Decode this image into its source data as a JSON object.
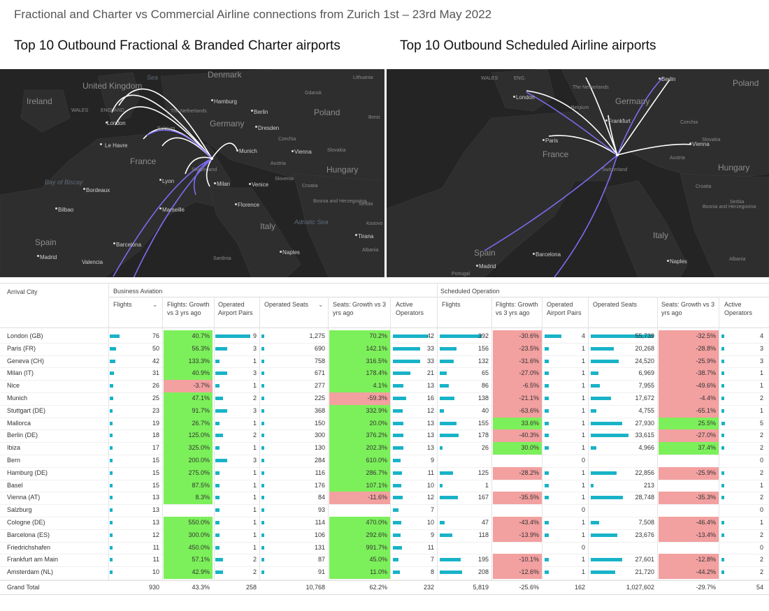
{
  "title": "Fractional and Charter vs Commercial Airline connections from Zurich 1st – 23rd May 2022",
  "maps": {
    "left_title": "Top 10 Outbound Fractional & Branded Charter airports",
    "right_title": "Top 10 Outbound Scheduled Airline airports",
    "left_labels": [
      "United Kingdom",
      "Ireland",
      "WALES",
      "ENGLAND",
      "London",
      "Le Havre",
      "France",
      "Bordeaux",
      "Bay of Biscay",
      "Bilbao",
      "Spain",
      "Madrid",
      "Valencia",
      "Barcelona",
      "Marseille",
      "Lyon",
      "Belgium",
      "The Netherlands",
      "Denmark",
      "Hamburg",
      "Berlin",
      "Gdansk",
      "Lithuania",
      "Poland",
      "Germany",
      "Dresden",
      "Brest",
      "Czechia",
      "Munich",
      "Vienna",
      "Slovakia",
      "Austria",
      "Hungary",
      "Switzerland",
      "Milan",
      "Venice",
      "Slovenia",
      "Croatia",
      "Bosnia and Herzegovina",
      "Serbia",
      "Florence",
      "Italy",
      "Adriatic Sea",
      "Kosovo",
      "Tirana",
      "Albania",
      "Naples",
      "Sardinia",
      "Sea"
    ],
    "right_labels": [
      "WALES",
      "ENG.",
      "London",
      "The Netherlands",
      "Belgium",
      "Germany",
      "Berlin",
      "Poland",
      "Frankfurt",
      "Paris",
      "France",
      "Czechia",
      "Slovakia",
      "Vienna",
      "Austria",
      "Hungary",
      "Switzerland",
      "Croatia",
      "Bosnia and Herzegovina",
      "Serbia",
      "Italy",
      "Spain",
      "Madrid",
      "Barcelona",
      "Naples",
      "Albania",
      "Portugal"
    ]
  },
  "chart_data": {
    "type": "table",
    "group_headers": [
      "Business Aviation",
      "Scheduled Operation"
    ],
    "columns": [
      "Arrival City",
      "Flights",
      "Flights: Growth vs 3 yrs ago",
      "Operated Airport Pairs",
      "Operated Seats",
      "Seats: Growth vs 3 yrs ago",
      "Active Operators",
      "Flights",
      "Flights: Growth vs 3 yrs ago",
      "Operated Airport Pairs",
      "Operated Seats",
      "Seats: Growth vs 3 yrs ago",
      "Active Operators"
    ],
    "rows": [
      {
        "city": "London (GB)",
        "ba_flights": 76,
        "ba_flights_growth": "40.7%",
        "ba_pairs": 9,
        "ba_seats": "1,275",
        "ba_seats_growth": "70.2%",
        "ba_ops": 42,
        "so_flights": 392,
        "so_flights_growth": "-30.6%",
        "so_pairs": 4,
        "so_seats": "55,739",
        "so_seats_growth": "-32.5%",
        "so_ops": 4
      },
      {
        "city": "Paris (FR)",
        "ba_flights": 50,
        "ba_flights_growth": "56.3%",
        "ba_pairs": 3,
        "ba_seats": "690",
        "ba_seats_growth": "142.1%",
        "ba_ops": 33,
        "so_flights": 156,
        "so_flights_growth": "-23.5%",
        "so_pairs": 1,
        "so_seats": "20,268",
        "so_seats_growth": "-28.8%",
        "so_ops": 3
      },
      {
        "city": "Geneva (CH)",
        "ba_flights": 42,
        "ba_flights_growth": "133.3%",
        "ba_pairs": 1,
        "ba_seats": "758",
        "ba_seats_growth": "316.5%",
        "ba_ops": 33,
        "so_flights": 132,
        "so_flights_growth": "-31.6%",
        "so_pairs": 1,
        "so_seats": "24,520",
        "so_seats_growth": "-25.9%",
        "so_ops": 3
      },
      {
        "city": "Milan (IT)",
        "ba_flights": 31,
        "ba_flights_growth": "40.9%",
        "ba_pairs": 3,
        "ba_seats": "671",
        "ba_seats_growth": "178.4%",
        "ba_ops": 21,
        "so_flights": 65,
        "so_flights_growth": "-27.0%",
        "so_pairs": 1,
        "so_seats": "6,969",
        "so_seats_growth": "-38.7%",
        "so_ops": 1
      },
      {
        "city": "Nice",
        "ba_flights": 26,
        "ba_flights_growth": "-3.7%",
        "ba_pairs": 1,
        "ba_seats": "277",
        "ba_seats_growth": "4.1%",
        "ba_ops": 13,
        "so_flights": 86,
        "so_flights_growth": "-6.5%",
        "so_pairs": 1,
        "so_seats": "7,955",
        "so_seats_growth": "-49.6%",
        "so_ops": 1
      },
      {
        "city": "Munich",
        "ba_flights": 25,
        "ba_flights_growth": "47.1%",
        "ba_pairs": 2,
        "ba_seats": "225",
        "ba_seats_growth": "-59.3%",
        "ba_ops": 16,
        "so_flights": 138,
        "so_flights_growth": "-21.1%",
        "so_pairs": 1,
        "so_seats": "17,672",
        "so_seats_growth": "-4.4%",
        "so_ops": 2
      },
      {
        "city": "Stuttgart (DE)",
        "ba_flights": 23,
        "ba_flights_growth": "91.7%",
        "ba_pairs": 3,
        "ba_seats": "368",
        "ba_seats_growth": "332.9%",
        "ba_ops": 12,
        "so_flights": 40,
        "so_flights_growth": "-63.6%",
        "so_pairs": 1,
        "so_seats": "4,755",
        "so_seats_growth": "-65.1%",
        "so_ops": 1
      },
      {
        "city": "Mallorca",
        "ba_flights": 19,
        "ba_flights_growth": "26.7%",
        "ba_pairs": 1,
        "ba_seats": "150",
        "ba_seats_growth": "20.0%",
        "ba_ops": 13,
        "so_flights": 155,
        "so_flights_growth": "33.6%",
        "so_pairs": 1,
        "so_seats": "27,930",
        "so_seats_growth": "25.5%",
        "so_ops": 5
      },
      {
        "city": "Berlin (DE)",
        "ba_flights": 18,
        "ba_flights_growth": "125.0%",
        "ba_pairs": 2,
        "ba_seats": "300",
        "ba_seats_growth": "376.2%",
        "ba_ops": 13,
        "so_flights": 178,
        "so_flights_growth": "-40.3%",
        "so_pairs": 1,
        "so_seats": "33,615",
        "so_seats_growth": "-27.0%",
        "so_ops": 2
      },
      {
        "city": "Ibiza",
        "ba_flights": 17,
        "ba_flights_growth": "325.0%",
        "ba_pairs": 1,
        "ba_seats": "130",
        "ba_seats_growth": "202.3%",
        "ba_ops": 13,
        "so_flights": 26,
        "so_flights_growth": "30.0%",
        "so_pairs": 1,
        "so_seats": "4,966",
        "so_seats_growth": "37.4%",
        "so_ops": 2
      },
      {
        "city": "Bern",
        "ba_flights": 15,
        "ba_flights_growth": "200.0%",
        "ba_pairs": 3,
        "ba_seats": "284",
        "ba_seats_growth": "610.0%",
        "ba_ops": 9,
        "so_flights": null,
        "so_flights_growth": "",
        "so_pairs": 0,
        "so_seats": "",
        "so_seats_growth": "",
        "so_ops": 0
      },
      {
        "city": "Hamburg (DE)",
        "ba_flights": 15,
        "ba_flights_growth": "275.0%",
        "ba_pairs": 1,
        "ba_seats": "116",
        "ba_seats_growth": "286.7%",
        "ba_ops": 11,
        "so_flights": 125,
        "so_flights_growth": "-28.2%",
        "so_pairs": 1,
        "so_seats": "22,856",
        "so_seats_growth": "-25.9%",
        "so_ops": 2
      },
      {
        "city": "Basel",
        "ba_flights": 15,
        "ba_flights_growth": "87.5%",
        "ba_pairs": 1,
        "ba_seats": "176",
        "ba_seats_growth": "107.1%",
        "ba_ops": 10,
        "so_flights": 1,
        "so_flights_growth": "",
        "so_pairs": 1,
        "so_seats": "213",
        "so_seats_growth": "",
        "so_ops": 1
      },
      {
        "city": "Vienna (AT)",
        "ba_flights": 13,
        "ba_flights_growth": "8.3%",
        "ba_pairs": 1,
        "ba_seats": "84",
        "ba_seats_growth": "-11.6%",
        "ba_ops": 12,
        "so_flights": 167,
        "so_flights_growth": "-35.5%",
        "so_pairs": 1,
        "so_seats": "28,748",
        "so_seats_growth": "-35.3%",
        "so_ops": 2
      },
      {
        "city": "Salzburg",
        "ba_flights": 13,
        "ba_flights_growth": "",
        "ba_pairs": 1,
        "ba_seats": "93",
        "ba_seats_growth": "",
        "ba_ops": 7,
        "so_flights": null,
        "so_flights_growth": "",
        "so_pairs": 0,
        "so_seats": "",
        "so_seats_growth": "",
        "so_ops": 0
      },
      {
        "city": "Cologne (DE)",
        "ba_flights": 13,
        "ba_flights_growth": "550.0%",
        "ba_pairs": 1,
        "ba_seats": "114",
        "ba_seats_growth": "470.0%",
        "ba_ops": 10,
        "so_flights": 47,
        "so_flights_growth": "-43.4%",
        "so_pairs": 1,
        "so_seats": "7,508",
        "so_seats_growth": "-46.4%",
        "so_ops": 1
      },
      {
        "city": "Barcelona (ES)",
        "ba_flights": 12,
        "ba_flights_growth": "300.0%",
        "ba_pairs": 1,
        "ba_seats": "106",
        "ba_seats_growth": "292.6%",
        "ba_ops": 9,
        "so_flights": 118,
        "so_flights_growth": "-13.9%",
        "so_pairs": 1,
        "so_seats": "23,676",
        "so_seats_growth": "-13.4%",
        "so_ops": 2
      },
      {
        "city": "Friedrichshafen",
        "ba_flights": 11,
        "ba_flights_growth": "450.0%",
        "ba_pairs": 1,
        "ba_seats": "131",
        "ba_seats_growth": "991.7%",
        "ba_ops": 11,
        "so_flights": null,
        "so_flights_growth": "",
        "so_pairs": 0,
        "so_seats": "",
        "so_seats_growth": "",
        "so_ops": 0
      },
      {
        "city": "Frankfurt am Main",
        "ba_flights": 11,
        "ba_flights_growth": "57.1%",
        "ba_pairs": 2,
        "ba_seats": "87",
        "ba_seats_growth": "45.0%",
        "ba_ops": 7,
        "so_flights": 195,
        "so_flights_growth": "-10.1%",
        "so_pairs": 1,
        "so_seats": "27,601",
        "so_seats_growth": "-12.8%",
        "so_ops": 2
      },
      {
        "city": "Amsterdam (NL)",
        "ba_flights": 10,
        "ba_flights_growth": "42.9%",
        "ba_pairs": 2,
        "ba_seats": "91",
        "ba_seats_growth": "11.0%",
        "ba_ops": 8,
        "so_flights": 208,
        "so_flights_growth": "-12.6%",
        "so_pairs": 1,
        "so_seats": "21,720",
        "so_seats_growth": "-44.2%",
        "so_ops": 2
      }
    ],
    "total": {
      "city": "Grand Total",
      "ba_flights": "930",
      "ba_flights_growth": "43.3%",
      "ba_pairs": "258",
      "ba_seats": "10,768",
      "ba_seats_growth": "62.2%",
      "ba_ops": "232",
      "so_flights": "5,819",
      "so_flights_growth": "-25.6%",
      "so_pairs": "162",
      "so_seats": "1,027,602",
      "so_seats_growth": "-29.7%",
      "so_ops": "54"
    },
    "colors": {
      "positive": "#7cf05a",
      "negative": "#f3a0a0",
      "bar": "#19b3c8",
      "map_bg": "#242424",
      "route_white": "#ffffff",
      "route_purple": "#7b6df0"
    }
  }
}
